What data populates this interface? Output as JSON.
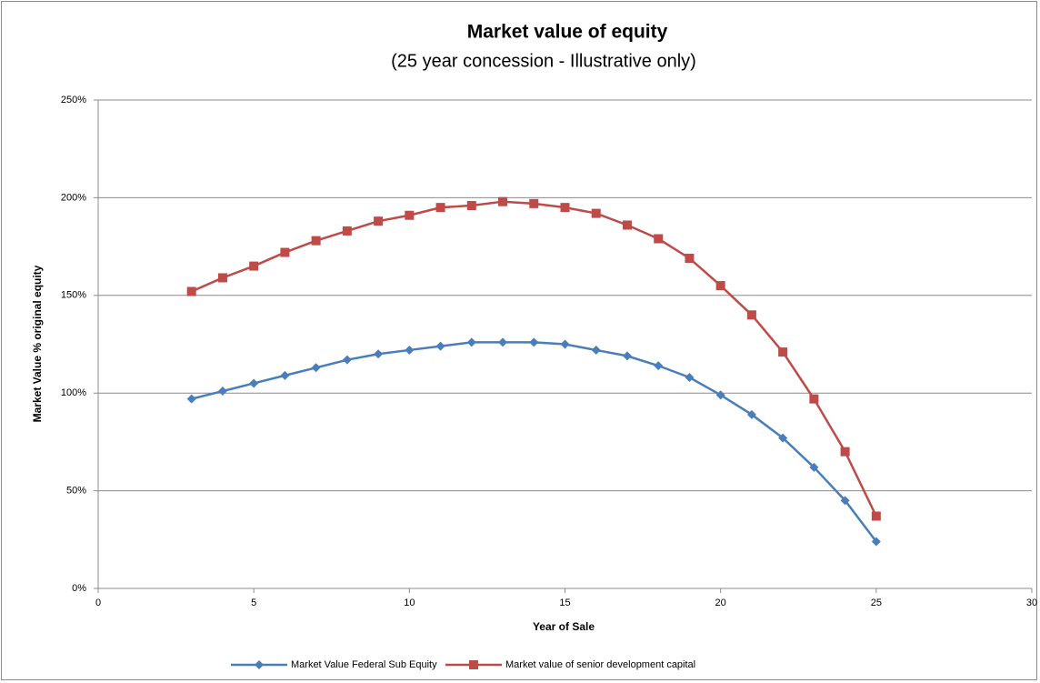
{
  "chart_data": {
    "type": "line",
    "title": "Market value of equity",
    "subtitle": "(25 year concession - Illustrative only)",
    "xlabel": "Year of Sale",
    "ylabel": "Market Value % original equity",
    "x": [
      3,
      4,
      5,
      6,
      7,
      8,
      9,
      10,
      11,
      12,
      13,
      14,
      15,
      16,
      17,
      18,
      19,
      20,
      21,
      22,
      23,
      24,
      25
    ],
    "series": [
      {
        "name": "Market Value Federal Sub Equity",
        "color": "#4a7ebb",
        "marker": "diamond",
        "values": [
          97,
          101,
          105,
          109,
          113,
          117,
          120,
          122,
          124,
          126,
          126,
          126,
          125,
          122,
          119,
          114,
          108,
          99,
          89,
          77,
          62,
          45,
          24
        ]
      },
      {
        "name": "Market value of senior development capital",
        "color": "#be4b48",
        "marker": "square",
        "values": [
          152,
          159,
          165,
          172,
          178,
          183,
          188,
          191,
          195,
          196,
          198,
          197,
          195,
          192,
          186,
          179,
          169,
          155,
          140,
          121,
          97,
          70,
          37
        ]
      }
    ],
    "xlim": [
      0,
      30
    ],
    "xticks": [
      0,
      5,
      10,
      15,
      20,
      25,
      30
    ],
    "ylim": [
      0,
      250
    ],
    "yticks": [
      {
        "value": 0,
        "label": "0%"
      },
      {
        "value": 50,
        "label": "50%"
      },
      {
        "value": 100,
        "label": "100%"
      },
      {
        "value": 150,
        "label": "150%"
      },
      {
        "value": 200,
        "label": "200%"
      },
      {
        "value": 250,
        "label": "250%"
      }
    ],
    "grid": true,
    "legend": "bottom"
  }
}
